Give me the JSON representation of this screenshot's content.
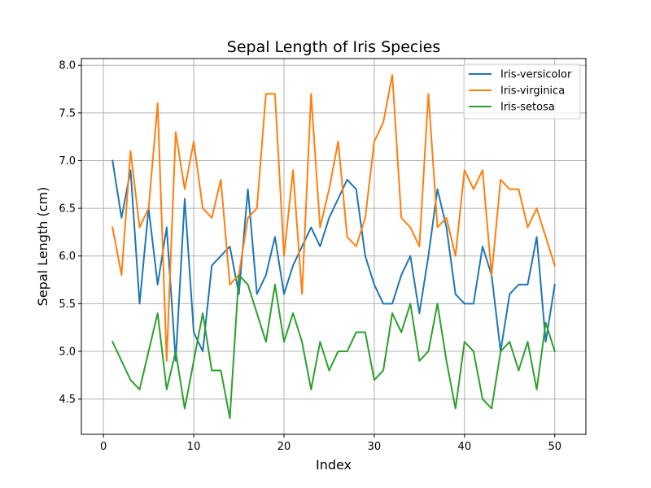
{
  "chart_data": {
    "type": "line",
    "title": "Sepal Length of Iris Species",
    "xlabel": "Index",
    "ylabel": "Sepal Length (cm)",
    "xlim": [
      -2.45,
      53.45
    ],
    "ylim": [
      4.13,
      8.07
    ],
    "xticks": [
      0,
      10,
      20,
      30,
      40,
      50
    ],
    "xtick_labels": [
      "0",
      "10",
      "20",
      "30",
      "40",
      "50"
    ],
    "yticks": [
      4.5,
      5.0,
      5.5,
      6.0,
      6.5,
      7.0,
      7.5,
      8.0
    ],
    "ytick_labels": [
      "4.5",
      "5.0",
      "5.5",
      "6.0",
      "6.5",
      "7.0",
      "7.5",
      "8.0"
    ],
    "grid": true,
    "legend_position": "top-right",
    "x": [
      1,
      2,
      3,
      4,
      5,
      6,
      7,
      8,
      9,
      10,
      11,
      12,
      13,
      14,
      15,
      16,
      17,
      18,
      19,
      20,
      21,
      22,
      23,
      24,
      25,
      26,
      27,
      28,
      29,
      30,
      31,
      32,
      33,
      34,
      35,
      36,
      37,
      38,
      39,
      40,
      41,
      42,
      43,
      44,
      45,
      46,
      47,
      48,
      49,
      50
    ],
    "series": [
      {
        "name": "Iris-versicolor",
        "color": "#1f77b4",
        "values": [
          7.0,
          6.4,
          6.9,
          5.5,
          6.5,
          5.7,
          6.3,
          4.9,
          6.6,
          5.2,
          5.0,
          5.9,
          6.0,
          6.1,
          5.6,
          6.7,
          5.6,
          5.8,
          6.2,
          5.6,
          5.9,
          6.1,
          6.3,
          6.1,
          6.4,
          6.6,
          6.8,
          6.7,
          6.0,
          5.7,
          5.5,
          5.5,
          5.8,
          6.0,
          5.4,
          6.0,
          6.7,
          6.3,
          5.6,
          5.5,
          5.5,
          6.1,
          5.8,
          5.0,
          5.6,
          5.7,
          5.7,
          6.2,
          5.1,
          5.7
        ]
      },
      {
        "name": "Iris-virginica",
        "color": "#ff7f0e",
        "values": [
          6.3,
          5.8,
          7.1,
          6.3,
          6.5,
          7.6,
          4.9,
          7.3,
          6.7,
          7.2,
          6.5,
          6.4,
          6.8,
          5.7,
          5.8,
          6.4,
          6.5,
          7.7,
          7.7,
          6.0,
          6.9,
          5.6,
          7.7,
          6.3,
          6.7,
          7.2,
          6.2,
          6.1,
          6.4,
          7.2,
          7.4,
          7.9,
          6.4,
          6.3,
          6.1,
          7.7,
          6.3,
          6.4,
          6.0,
          6.9,
          6.7,
          6.9,
          5.8,
          6.8,
          6.7,
          6.7,
          6.3,
          6.5,
          6.2,
          5.9
        ]
      },
      {
        "name": "Iris-setosa",
        "color": "#2ca02c",
        "values": [
          5.1,
          4.9,
          4.7,
          4.6,
          5.0,
          5.4,
          4.6,
          5.0,
          4.4,
          4.9,
          5.4,
          4.8,
          4.8,
          4.3,
          5.8,
          5.7,
          5.4,
          5.1,
          5.7,
          5.1,
          5.4,
          5.1,
          4.6,
          5.1,
          4.8,
          5.0,
          5.0,
          5.2,
          5.2,
          4.7,
          4.8,
          5.4,
          5.2,
          5.5,
          4.9,
          5.0,
          5.5,
          4.9,
          4.4,
          5.1,
          5.0,
          4.5,
          4.4,
          5.0,
          5.1,
          4.8,
          5.1,
          4.6,
          5.3,
          5.0
        ]
      }
    ]
  }
}
